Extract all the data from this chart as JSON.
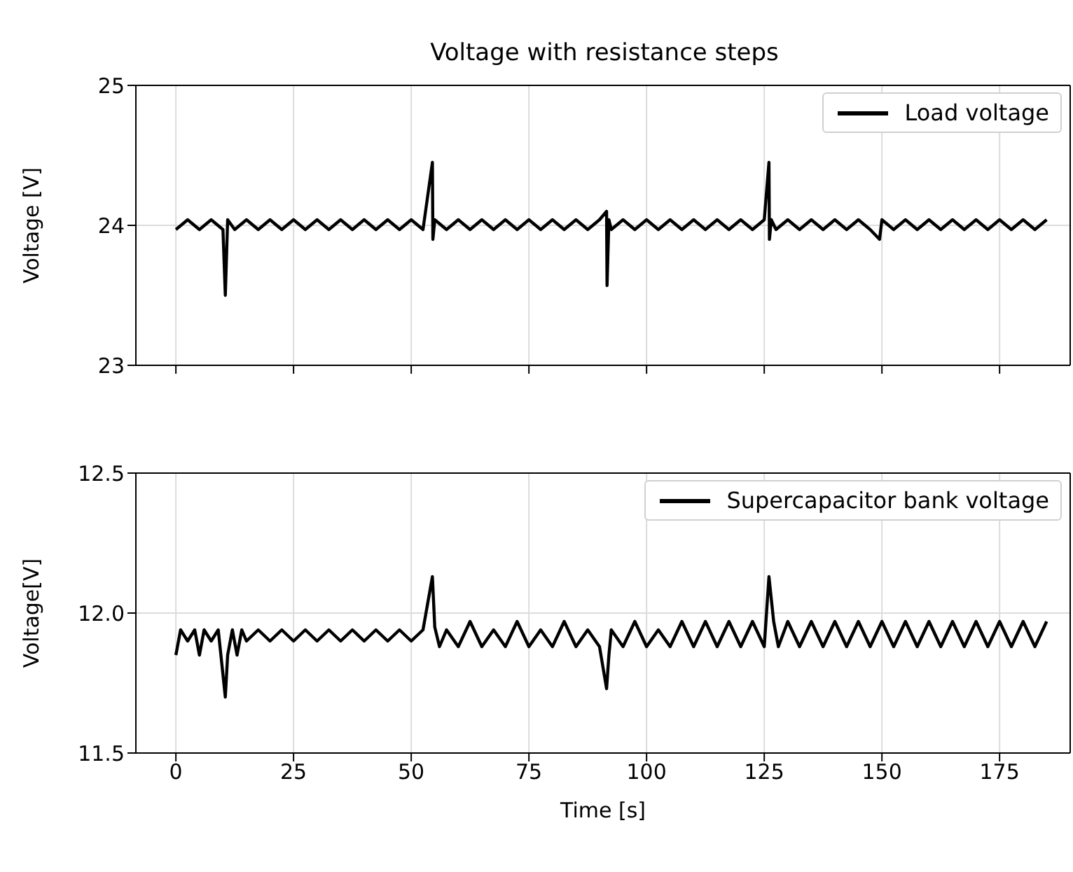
{
  "chart_data": [
    {
      "type": "line",
      "title": "Voltage with resistance steps",
      "ylabel": "Voltage [V]",
      "xlim": [
        -8.5,
        190
      ],
      "xticks": [
        0,
        25,
        50,
        75,
        100,
        125,
        150,
        175
      ],
      "ylim": [
        23,
        25
      ],
      "yticks": [
        23,
        24,
        25
      ],
      "grid": true,
      "legend": "top right",
      "tick_labels": "y",
      "series": [
        {
          "name": "Load voltage",
          "color": "#000000",
          "x": [
            0,
            2.5,
            5,
            7.5,
            10,
            10.5,
            11,
            12.5,
            15,
            17.5,
            20,
            22.5,
            25,
            27.5,
            30,
            32.5,
            35,
            37.5,
            40,
            42.5,
            45,
            47.5,
            50,
            52.5,
            54.5,
            54.6,
            55,
            57.5,
            60,
            62.5,
            65,
            67.5,
            70,
            72.5,
            75,
            77.5,
            80,
            82.5,
            85,
            87.5,
            90,
            91.5,
            91.6,
            92,
            92.5,
            95,
            97.5,
            100,
            102.5,
            105,
            107.5,
            110,
            112.5,
            115,
            117.5,
            120,
            122.5,
            125,
            126,
            126.1,
            126.5,
            127.5,
            130,
            132.5,
            135,
            137.5,
            140,
            142.5,
            145,
            147.5,
            149.5,
            150,
            152.5,
            155,
            157.5,
            160,
            162.5,
            165,
            167.5,
            170,
            172.5,
            175,
            177.5,
            180,
            182.5,
            185
          ],
          "values": [
            23.97,
            24.04,
            23.97,
            24.04,
            23.97,
            23.5,
            24.04,
            23.97,
            24.04,
            23.97,
            24.04,
            23.97,
            24.04,
            23.97,
            24.04,
            23.97,
            24.04,
            23.97,
            24.04,
            23.97,
            24.04,
            23.97,
            24.04,
            23.97,
            24.45,
            23.9,
            24.04,
            23.97,
            24.04,
            23.97,
            24.04,
            23.97,
            24.04,
            23.97,
            24.04,
            23.97,
            24.04,
            23.97,
            24.04,
            23.97,
            24.04,
            24.1,
            23.57,
            24.04,
            23.97,
            24.04,
            23.97,
            24.04,
            23.97,
            24.04,
            23.97,
            24.04,
            23.97,
            24.04,
            23.97,
            24.04,
            23.97,
            24.04,
            24.45,
            23.9,
            24.04,
            23.97,
            24.04,
            23.97,
            24.04,
            23.97,
            24.04,
            23.97,
            24.04,
            23.97,
            23.9,
            24.04,
            23.97,
            24.04,
            23.97,
            24.04,
            23.97,
            24.04,
            23.97,
            24.04,
            23.97,
            24.04,
            23.97,
            24.04,
            23.97,
            24.04
          ]
        }
      ]
    },
    {
      "type": "line",
      "xlabel": "Time [s]",
      "ylabel": "Voltage[V]",
      "xlim": [
        -8.5,
        190
      ],
      "xticks": [
        0,
        25,
        50,
        75,
        100,
        125,
        150,
        175
      ],
      "ylim": [
        11.5,
        12.5
      ],
      "yticks": [
        {
          "value": 11.5,
          "label": "11.5"
        },
        {
          "value": 12,
          "label": "12.0"
        },
        {
          "value": 12.5,
          "label": "12.5"
        }
      ],
      "grid": true,
      "legend": "top right",
      "series": [
        {
          "name": "Supercapacitor bank voltage",
          "color": "#000000",
          "x": [
            0,
            1,
            2.5,
            4,
            5,
            6,
            7.5,
            9,
            10.5,
            11,
            12,
            13,
            14,
            15,
            17.5,
            20,
            22.5,
            25,
            27.5,
            30,
            32.5,
            35,
            37.5,
            40,
            42.5,
            45,
            47.5,
            50,
            52.5,
            54.5,
            55,
            56,
            57.5,
            60,
            62.5,
            65,
            67.5,
            70,
            72.5,
            75,
            77.5,
            80,
            82.5,
            85,
            87.5,
            90,
            91.5,
            92,
            92.5,
            95,
            97.5,
            100,
            102.5,
            105,
            107.5,
            110,
            112.5,
            115,
            117.5,
            120,
            122.5,
            125,
            126,
            127,
            128,
            130,
            132.5,
            135,
            137.5,
            140,
            142.5,
            145,
            147.5,
            150,
            152.5,
            155,
            157.5,
            160,
            162.5,
            165,
            167.5,
            170,
            172.5,
            175,
            177.5,
            180,
            182.5,
            185
          ],
          "values": [
            11.85,
            11.94,
            11.9,
            11.94,
            11.85,
            11.94,
            11.9,
            11.94,
            11.7,
            11.85,
            11.94,
            11.85,
            11.94,
            11.9,
            11.94,
            11.9,
            11.94,
            11.9,
            11.94,
            11.9,
            11.94,
            11.9,
            11.94,
            11.9,
            11.94,
            11.9,
            11.94,
            11.9,
            11.94,
            12.13,
            11.95,
            11.88,
            11.94,
            11.88,
            11.97,
            11.88,
            11.94,
            11.88,
            11.97,
            11.88,
            11.94,
            11.88,
            11.97,
            11.88,
            11.94,
            11.88,
            11.73,
            11.85,
            11.94,
            11.88,
            11.97,
            11.88,
            11.94,
            11.88,
            11.97,
            11.88,
            11.97,
            11.88,
            11.97,
            11.88,
            11.97,
            11.88,
            12.13,
            11.97,
            11.88,
            11.97,
            11.88,
            11.97,
            11.88,
            11.97,
            11.88,
            11.97,
            11.88,
            11.97,
            11.88,
            11.97,
            11.88,
            11.97,
            11.88,
            11.97,
            11.88,
            11.97,
            11.88,
            11.97,
            11.88,
            11.97,
            11.88,
            11.97
          ]
        }
      ]
    }
  ]
}
